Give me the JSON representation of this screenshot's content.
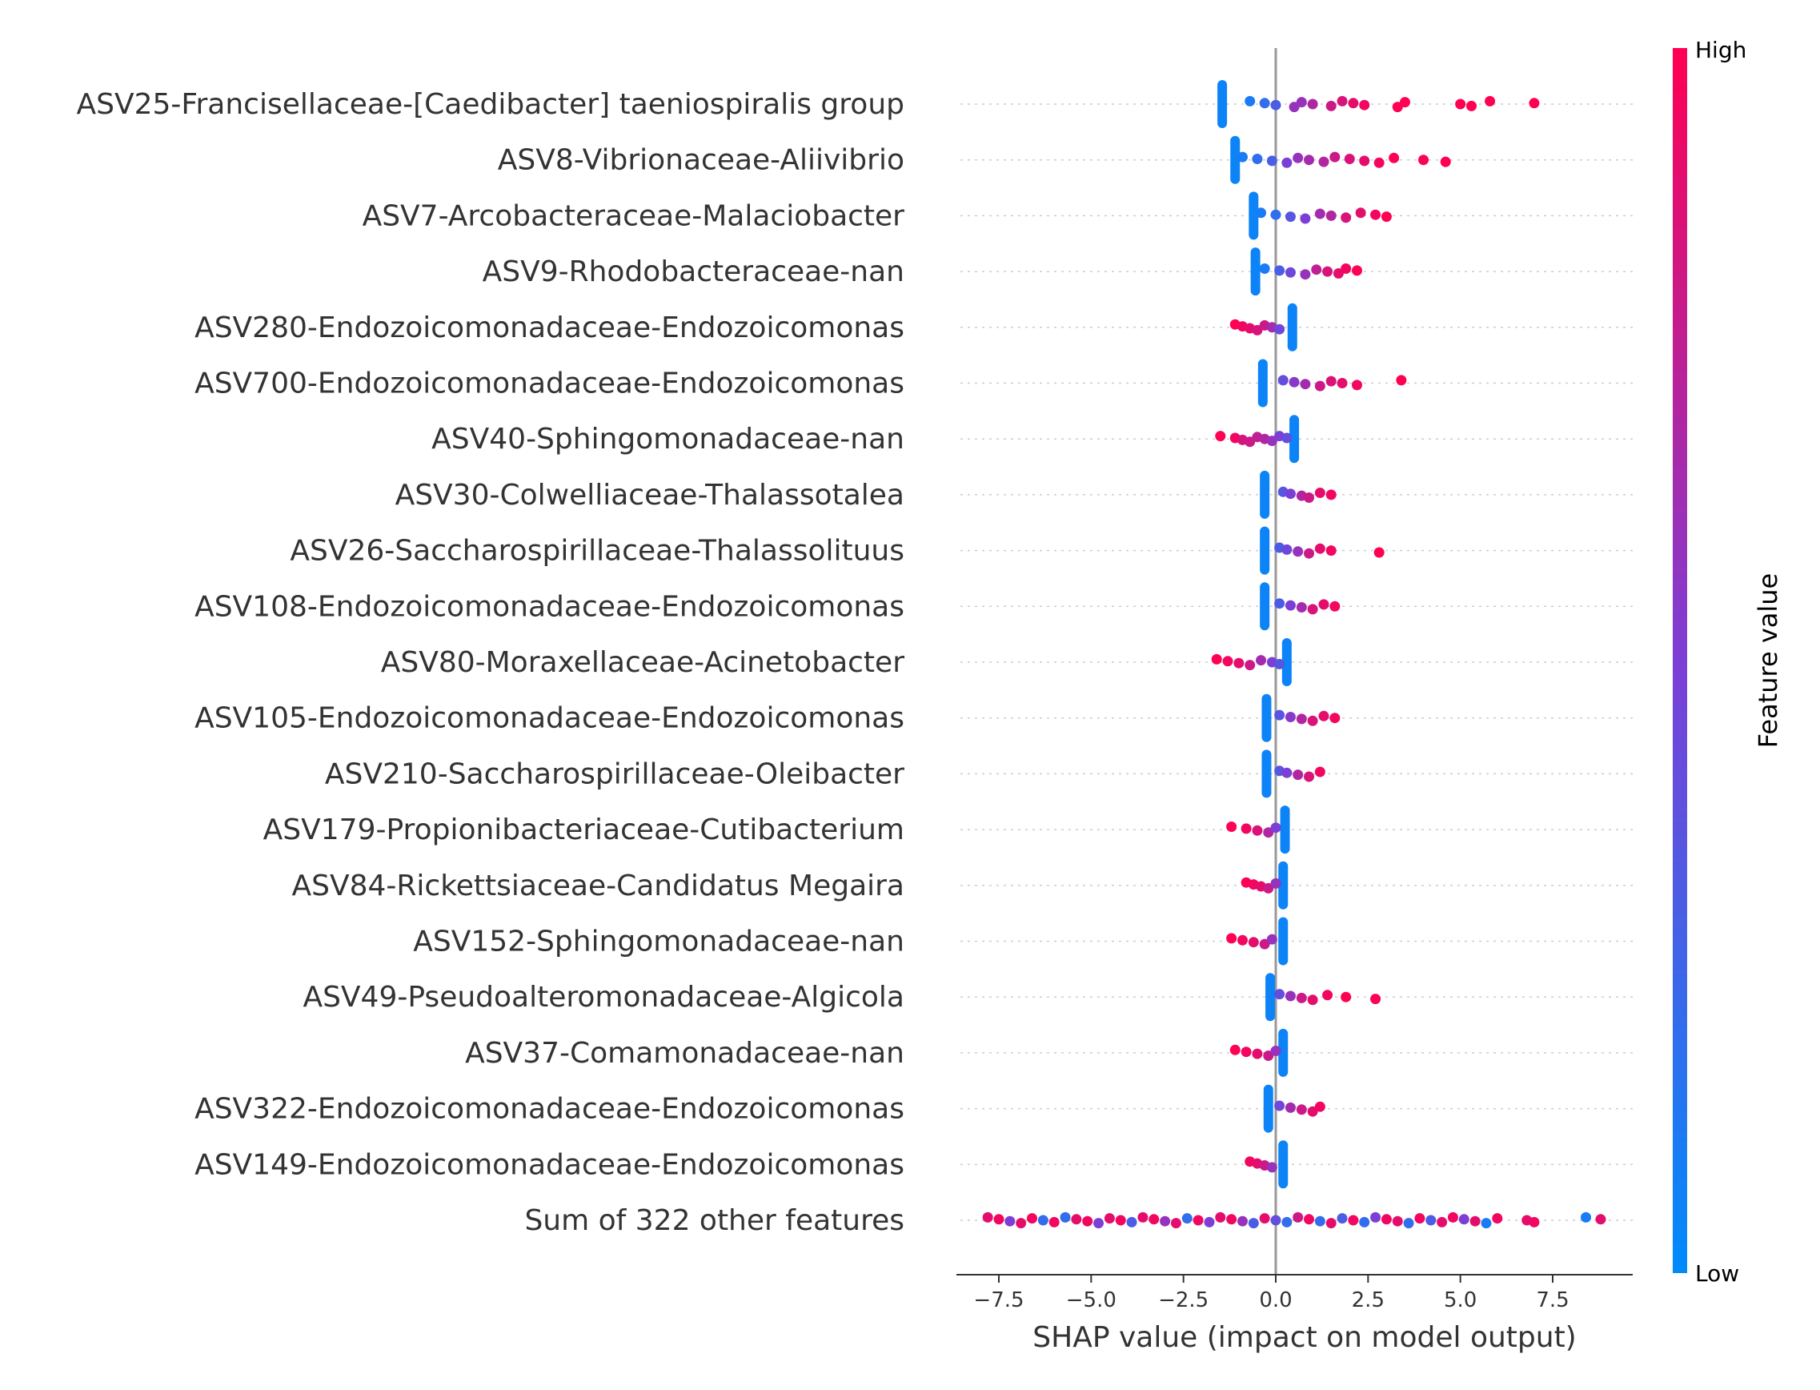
{
  "chart_data": {
    "type": "scatter",
    "subtype": "shap-beeswarm",
    "xlabel": "SHAP value (impact on model output)",
    "xlim": [
      -8.6,
      9.7
    ],
    "xticks": [
      -7.5,
      -5.0,
      -2.5,
      0.0,
      2.5,
      5.0,
      7.5
    ],
    "xtick_labels": [
      "−7.5",
      "−5.0",
      "−2.5",
      "0.0",
      "2.5",
      "5.0",
      "7.5"
    ],
    "zero_line": 0,
    "colorbar": {
      "title": "Feature value",
      "high_label": "High",
      "low_label": "Low",
      "high_color": "#ff0052",
      "low_color": "#008bfb"
    },
    "features": [
      {
        "name": "ASV25-Francisellaceae-[Caedibacter] taeniospiralis group",
        "low_cluster": -1.45,
        "points": [
          [
            -0.7,
            0.1
          ],
          [
            -0.3,
            0.2
          ],
          [
            0.0,
            0.3
          ],
          [
            0.5,
            0.6
          ],
          [
            0.7,
            0.6
          ],
          [
            1.0,
            0.7
          ],
          [
            1.5,
            0.8
          ],
          [
            1.8,
            0.85
          ],
          [
            2.1,
            0.9
          ],
          [
            2.4,
            0.95
          ],
          [
            3.3,
            1
          ],
          [
            3.5,
            1
          ],
          [
            5.0,
            1
          ],
          [
            5.3,
            1
          ],
          [
            5.8,
            1
          ],
          [
            7.0,
            1
          ]
        ]
      },
      {
        "name": "ASV8-Vibrionaceae-Aliivibrio",
        "low_cluster": -1.1,
        "points": [
          [
            -0.9,
            0.1
          ],
          [
            -0.5,
            0.2
          ],
          [
            -0.1,
            0.3
          ],
          [
            0.3,
            0.5
          ],
          [
            0.6,
            0.6
          ],
          [
            0.9,
            0.65
          ],
          [
            1.3,
            0.7
          ],
          [
            1.6,
            0.8
          ],
          [
            2.0,
            0.85
          ],
          [
            2.4,
            0.9
          ],
          [
            2.8,
            0.95
          ],
          [
            3.2,
            1
          ],
          [
            4.0,
            1
          ],
          [
            4.6,
            1
          ]
        ]
      },
      {
        "name": "ASV7-Arcobacteraceae-Malaciobacter",
        "low_cluster": -0.6,
        "points": [
          [
            -0.4,
            0.1
          ],
          [
            0.0,
            0.2
          ],
          [
            0.4,
            0.35
          ],
          [
            0.8,
            0.5
          ],
          [
            1.2,
            0.65
          ],
          [
            1.5,
            0.7
          ],
          [
            1.9,
            0.85
          ],
          [
            2.3,
            0.9
          ],
          [
            2.7,
            0.95
          ],
          [
            3.0,
            1
          ]
        ]
      },
      {
        "name": "ASV9-Rhodobacteraceae-nan",
        "low_cluster": -0.55,
        "points": [
          [
            -0.3,
            0.1
          ],
          [
            0.1,
            0.3
          ],
          [
            0.4,
            0.45
          ],
          [
            0.8,
            0.6
          ],
          [
            1.1,
            0.75
          ],
          [
            1.4,
            0.85
          ],
          [
            1.7,
            0.9
          ],
          [
            1.9,
            0.95
          ],
          [
            2.2,
            1
          ]
        ]
      },
      {
        "name": "ASV280-Endozoicomonadaceae-Endozoicomonas",
        "low_cluster": 0.45,
        "points": [
          [
            -1.1,
            1
          ],
          [
            -0.9,
            0.95
          ],
          [
            -0.7,
            0.9
          ],
          [
            -0.5,
            0.85
          ],
          [
            -0.3,
            0.8
          ],
          [
            -0.1,
            0.65
          ],
          [
            0.1,
            0.45
          ]
        ]
      },
      {
        "name": "ASV700-Endozoicomonadaceae-Endozoicomonas",
        "low_cluster": -0.35,
        "points": [
          [
            0.2,
            0.4
          ],
          [
            0.5,
            0.55
          ],
          [
            0.8,
            0.65
          ],
          [
            1.2,
            0.8
          ],
          [
            1.5,
            0.85
          ],
          [
            1.8,
            0.9
          ],
          [
            2.2,
            0.95
          ],
          [
            3.4,
            1
          ]
        ]
      },
      {
        "name": "ASV40-Sphingomonadaceae-nan",
        "low_cluster": 0.5,
        "points": [
          [
            -1.5,
            1
          ],
          [
            -1.1,
            0.95
          ],
          [
            -0.9,
            0.85
          ],
          [
            -0.7,
            0.8
          ],
          [
            -0.5,
            0.75
          ],
          [
            -0.3,
            0.7
          ],
          [
            -0.1,
            0.6
          ],
          [
            0.1,
            0.5
          ],
          [
            0.3,
            0.4
          ]
        ]
      },
      {
        "name": "ASV30-Colwelliaceae-Thalassotalea",
        "low_cluster": -0.3,
        "points": [
          [
            0.2,
            0.35
          ],
          [
            0.4,
            0.5
          ],
          [
            0.7,
            0.7
          ],
          [
            0.9,
            0.8
          ],
          [
            1.2,
            0.9
          ],
          [
            1.5,
            0.95
          ]
        ]
      },
      {
        "name": "ASV26-Saccharospirillaceae-Thalassolituus",
        "low_cluster": -0.3,
        "points": [
          [
            0.1,
            0.3
          ],
          [
            0.3,
            0.45
          ],
          [
            0.6,
            0.6
          ],
          [
            0.9,
            0.8
          ],
          [
            1.2,
            0.9
          ],
          [
            1.5,
            0.95
          ],
          [
            2.8,
            1
          ]
        ]
      },
      {
        "name": "ASV108-Endozoicomonadaceae-Endozoicomonas",
        "low_cluster": -0.3,
        "points": [
          [
            0.1,
            0.3
          ],
          [
            0.4,
            0.5
          ],
          [
            0.7,
            0.65
          ],
          [
            1.0,
            0.85
          ],
          [
            1.3,
            0.9
          ],
          [
            1.6,
            0.95
          ]
        ]
      },
      {
        "name": "ASV80-Moraxellaceae-Acinetobacter",
        "low_cluster": 0.3,
        "points": [
          [
            -1.6,
            1
          ],
          [
            -1.3,
            0.95
          ],
          [
            -1.0,
            0.9
          ],
          [
            -0.7,
            0.8
          ],
          [
            -0.4,
            0.65
          ],
          [
            -0.1,
            0.5
          ],
          [
            0.1,
            0.35
          ]
        ]
      },
      {
        "name": "ASV105-Endozoicomonadaceae-Endozoicomonas",
        "low_cluster": -0.25,
        "points": [
          [
            0.1,
            0.35
          ],
          [
            0.4,
            0.55
          ],
          [
            0.7,
            0.7
          ],
          [
            1.0,
            0.85
          ],
          [
            1.3,
            0.9
          ],
          [
            1.6,
            0.95
          ]
        ]
      },
      {
        "name": "ASV210-Saccharospirillaceae-Oleibacter",
        "low_cluster": -0.25,
        "points": [
          [
            0.1,
            0.35
          ],
          [
            0.3,
            0.5
          ],
          [
            0.6,
            0.7
          ],
          [
            0.9,
            0.85
          ],
          [
            1.2,
            0.95
          ]
        ]
      },
      {
        "name": "ASV179-Propionibacteriaceae-Cutibacterium",
        "low_cluster": 0.25,
        "points": [
          [
            -1.2,
            1
          ],
          [
            -0.8,
            0.95
          ],
          [
            -0.5,
            0.85
          ],
          [
            -0.2,
            0.7
          ],
          [
            0.0,
            0.5
          ]
        ]
      },
      {
        "name": "ASV84-Rickettsiaceae-Candidatus Megaira",
        "low_cluster": 0.2,
        "points": [
          [
            -0.8,
            1
          ],
          [
            -0.6,
            0.95
          ],
          [
            -0.4,
            0.9
          ],
          [
            -0.2,
            0.8
          ],
          [
            0.0,
            0.6
          ]
        ]
      },
      {
        "name": "ASV152-Sphingomonadaceae-nan",
        "low_cluster": 0.2,
        "points": [
          [
            -1.2,
            1
          ],
          [
            -0.9,
            0.95
          ],
          [
            -0.6,
            0.9
          ],
          [
            -0.3,
            0.8
          ],
          [
            -0.1,
            0.6
          ]
        ]
      },
      {
        "name": "ASV49-Pseudoalteromonadaceae-Algicola",
        "low_cluster": -0.15,
        "points": [
          [
            0.1,
            0.4
          ],
          [
            0.4,
            0.6
          ],
          [
            0.7,
            0.8
          ],
          [
            1.0,
            0.9
          ],
          [
            1.4,
            0.95
          ],
          [
            1.9,
            1
          ],
          [
            2.7,
            1
          ]
        ]
      },
      {
        "name": "ASV37-Comamonadaceae-nan",
        "low_cluster": 0.2,
        "points": [
          [
            -1.1,
            1
          ],
          [
            -0.8,
            0.95
          ],
          [
            -0.5,
            0.9
          ],
          [
            -0.2,
            0.8
          ],
          [
            0.0,
            0.6
          ]
        ]
      },
      {
        "name": "ASV322-Endozoicomonadaceae-Endozoicomonas",
        "low_cluster": -0.2,
        "points": [
          [
            0.1,
            0.45
          ],
          [
            0.4,
            0.65
          ],
          [
            0.7,
            0.8
          ],
          [
            1.0,
            0.9
          ],
          [
            1.2,
            0.95
          ]
        ]
      },
      {
        "name": "ASV149-Endozoicomonadaceae-Endozoicomonas",
        "low_cluster": 0.2,
        "points": [
          [
            -0.7,
            0.95
          ],
          [
            -0.5,
            0.9
          ],
          [
            -0.3,
            0.8
          ],
          [
            -0.1,
            0.6
          ]
        ]
      },
      {
        "name": "Sum of 322 other features",
        "low_cluster": null,
        "points": [
          [
            -7.8,
            0.9
          ],
          [
            -7.5,
            0.95
          ],
          [
            -7.2,
            0.5
          ],
          [
            -6.9,
            0.9
          ],
          [
            -6.6,
            0.95
          ],
          [
            -6.3,
            0.2
          ],
          [
            -6.0,
            0.95
          ],
          [
            -5.7,
            0.2
          ],
          [
            -5.4,
            0.9
          ],
          [
            -5.1,
            0.95
          ],
          [
            -4.8,
            0.5
          ],
          [
            -4.5,
            0.9
          ],
          [
            -4.2,
            0.95
          ],
          [
            -3.9,
            0.3
          ],
          [
            -3.6,
            0.9
          ],
          [
            -3.3,
            0.95
          ],
          [
            -3.0,
            0.6
          ],
          [
            -2.7,
            0.9
          ],
          [
            -2.4,
            0.2
          ],
          [
            -2.1,
            0.95
          ],
          [
            -1.8,
            0.5
          ],
          [
            -1.5,
            0.9
          ],
          [
            -1.2,
            0.95
          ],
          [
            -0.9,
            0.6
          ],
          [
            -0.6,
            0.3
          ],
          [
            -0.3,
            0.9
          ],
          [
            0.0,
            0.4
          ],
          [
            0.3,
            0.2
          ],
          [
            0.6,
            0.8
          ],
          [
            0.9,
            0.95
          ],
          [
            1.2,
            0.2
          ],
          [
            1.5,
            0.9
          ],
          [
            1.8,
            0.3
          ],
          [
            2.1,
            0.95
          ],
          [
            2.4,
            0.2
          ],
          [
            2.7,
            0.5
          ],
          [
            3.0,
            0.95
          ],
          [
            3.3,
            0.9
          ],
          [
            3.6,
            0.2
          ],
          [
            3.9,
            0.95
          ],
          [
            4.2,
            0.3
          ],
          [
            4.5,
            0.9
          ],
          [
            4.8,
            0.95
          ],
          [
            5.1,
            0.5
          ],
          [
            5.4,
            0.9
          ],
          [
            5.7,
            0.1
          ],
          [
            6.0,
            0.95
          ],
          [
            6.8,
            0.9
          ],
          [
            7.0,
            0.95
          ],
          [
            8.4,
            0.1
          ],
          [
            8.8,
            0.9
          ]
        ]
      }
    ]
  }
}
